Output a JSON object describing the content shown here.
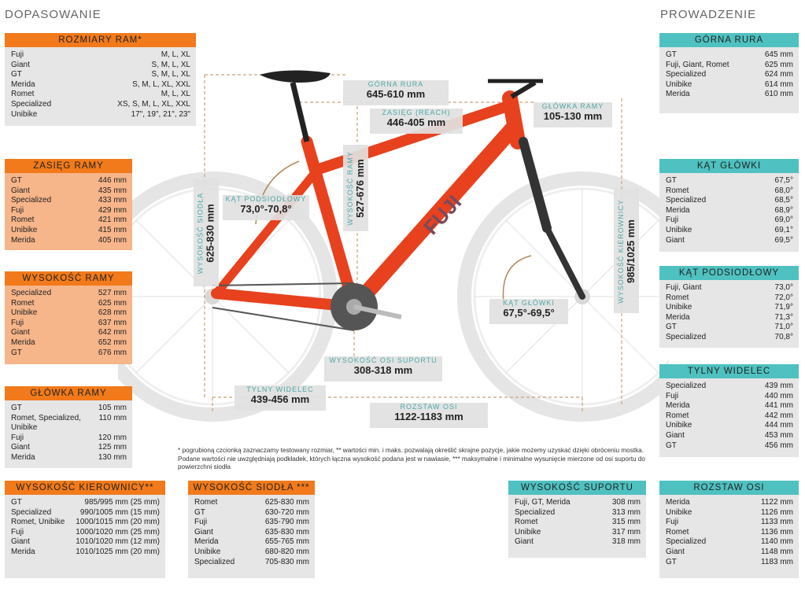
{
  "titles": {
    "left": "DOPASOWANIE",
    "right": "PROWADZENIE"
  },
  "tables": {
    "rozmiary": {
      "title": "ROZMIARY RAM*",
      "rows": [
        {
          "n": "Fuji",
          "v": "M, L, XL"
        },
        {
          "n": "Giant",
          "v": "S, M, L, XL"
        },
        {
          "n": "GT",
          "v": "S, M, L, XL"
        },
        {
          "n": "Merida",
          "v": "S, M, L, XL, XXL"
        },
        {
          "n": "Romet",
          "v": "M, L, XL"
        },
        {
          "n": "Specialized",
          "v": "XS, S, M, L, XL, XXL"
        },
        {
          "n": "Unibike",
          "v": "17\", 19\", 21\", 23\""
        }
      ]
    },
    "zasieg": {
      "title": "ZASIĘG RAMY",
      "rows": [
        {
          "n": "GT",
          "v": "446 mm"
        },
        {
          "n": "Giant",
          "v": "435 mm"
        },
        {
          "n": "Specialized",
          "v": "433 mm"
        },
        {
          "n": "Fuji",
          "v": "429 mm"
        },
        {
          "n": "Romet",
          "v": "421 mm"
        },
        {
          "n": "Unibike",
          "v": "415 mm"
        },
        {
          "n": "Merida",
          "v": "405 mm"
        }
      ]
    },
    "wysokosc_ramy": {
      "title": "WYSOKOŚĆ RAMY",
      "rows": [
        {
          "n": "Specialized",
          "v": "527 mm"
        },
        {
          "n": "Romet",
          "v": "625 mm"
        },
        {
          "n": "Unibike",
          "v": "628 mm"
        },
        {
          "n": "Fuji",
          "v": "637 mm"
        },
        {
          "n": "Giant",
          "v": "642 mm"
        },
        {
          "n": "Merida",
          "v": "652 mm"
        },
        {
          "n": "GT",
          "v": "676 mm"
        }
      ]
    },
    "glowka": {
      "title": "GŁÓWKA RAMY",
      "rows": [
        {
          "n": "GT",
          "v": "105 mm"
        },
        {
          "n": "Romet, Specialized, Unibike",
          "v": "110 mm"
        },
        {
          "n": "Fuji",
          "v": "120 mm"
        },
        {
          "n": "Giant",
          "v": "125 mm"
        },
        {
          "n": "Merida",
          "v": "130 mm"
        }
      ]
    },
    "kierownica": {
      "title": "WYSOKOŚĆ KIEROWNICY**",
      "rows": [
        {
          "n": "GT",
          "v": "985/995 mm (25 mm)"
        },
        {
          "n": "Specialized",
          "v": "990/1005 mm (15 mm)"
        },
        {
          "n": "Romet, Unibike",
          "v": "1000/1015 mm (20 mm)"
        },
        {
          "n": "Fuji",
          "v": "1000/1020 mm (25 mm)"
        },
        {
          "n": "Giant",
          "v": "1010/1020 mm (12 mm)"
        },
        {
          "n": "Merida",
          "v": "1010/1025 mm (20 mm)"
        }
      ]
    },
    "siodlo": {
      "title": "WYSOKOŚĆ SIODŁA ***",
      "rows": [
        {
          "n": "Romet",
          "v": "625-830 mm"
        },
        {
          "n": "GT",
          "v": "630-720 mm"
        },
        {
          "n": "Fuji",
          "v": "635-790 mm"
        },
        {
          "n": "Giant",
          "v": "635-830 mm"
        },
        {
          "n": "Merida",
          "v": "655-765 mm"
        },
        {
          "n": "Unibike",
          "v": "680-820 mm"
        },
        {
          "n": "Specialized",
          "v": "705-830 mm"
        }
      ]
    },
    "suport": {
      "title": "WYSOKOŚĆ SUPORTU",
      "rows": [
        {
          "n": "Fuji, GT, Merida",
          "v": "308 mm"
        },
        {
          "n": "Specialized",
          "v": "313 mm"
        },
        {
          "n": "Romet",
          "v": "315 mm"
        },
        {
          "n": "Unibike",
          "v": "317 mm"
        },
        {
          "n": "Giant",
          "v": "318 mm"
        }
      ]
    },
    "gorna": {
      "title": "GÓRNA RURA",
      "rows": [
        {
          "n": "GT",
          "v": "645 mm"
        },
        {
          "n": "Fuji, Giant, Romet",
          "v": "625 mm"
        },
        {
          "n": "Specialized",
          "v": "624 mm"
        },
        {
          "n": "Unibike",
          "v": "614 mm"
        },
        {
          "n": "Merida",
          "v": "610 mm"
        }
      ]
    },
    "kat_glowki": {
      "title": "KĄT GŁÓWKI",
      "rows": [
        {
          "n": "GT",
          "v": "67,5°"
        },
        {
          "n": "Romet",
          "v": "68,0°"
        },
        {
          "n": "Specialized",
          "v": "68,5°"
        },
        {
          "n": "Merida",
          "v": "68,9°"
        },
        {
          "n": "Fuji",
          "v": "69,0°"
        },
        {
          "n": "Unibike",
          "v": "69,1°"
        },
        {
          "n": "Giant",
          "v": "69,5°"
        }
      ]
    },
    "kat_podsiodlowy": {
      "title": "KĄT PODSIODŁOWY",
      "rows": [
        {
          "n": "Fuji, Giant",
          "v": "73,0°"
        },
        {
          "n": "Romet",
          "v": "72,0°"
        },
        {
          "n": "Unibike",
          "v": "71,9°"
        },
        {
          "n": "Merida",
          "v": "71,3°"
        },
        {
          "n": "GT",
          "v": "71,0°"
        },
        {
          "n": "Specialized",
          "v": "70,8°"
        }
      ]
    },
    "tylny": {
      "title": "TYLNY WIDELEC",
      "rows": [
        {
          "n": "Specialized",
          "v": "439 mm"
        },
        {
          "n": "Fuji",
          "v": "440 mm"
        },
        {
          "n": "Merida",
          "v": "441 mm"
        },
        {
          "n": "Romet",
          "v": "442 mm"
        },
        {
          "n": "Unibike",
          "v": "444 mm"
        },
        {
          "n": "Giant",
          "v": "453 mm"
        },
        {
          "n": "GT",
          "v": "456 mm"
        }
      ]
    },
    "rozstaw": {
      "title": "ROZSTAW OSI",
      "rows": [
        {
          "n": "Merida",
          "v": "1122 mm"
        },
        {
          "n": "Unibike",
          "v": "1126 mm"
        },
        {
          "n": "Fuji",
          "v": "1133 mm"
        },
        {
          "n": "Romet",
          "v": "1136 mm"
        },
        {
          "n": "Specialized",
          "v": "1140 mm"
        },
        {
          "n": "Giant",
          "v": "1148 mm"
        },
        {
          "n": "GT",
          "v": "1183 mm"
        }
      ]
    }
  },
  "diagram": {
    "gorna_rura": {
      "label": "GÓRNA RURA",
      "value": "645-610 mm"
    },
    "zasieg": {
      "label": "ZASIĘG (REACH)",
      "value": "446-405 mm"
    },
    "glowka": {
      "label": "GŁÓWKA RAMY",
      "value": "105-130 mm"
    },
    "kat_podsiodlowy": {
      "label": "KĄT PODSIODŁOWY",
      "value": "73,0°-70,8°"
    },
    "kat_glowki": {
      "label": "KĄT GŁÓWKI",
      "value": "67,5°-69,5°"
    },
    "suport": {
      "label": "WYSOKOŚĆ OSI SUPORTU",
      "value": "308-318 mm"
    },
    "tylny": {
      "label": "TYLNY WIDELEC",
      "value": "439-456 mm"
    },
    "rozstaw": {
      "label": "ROZSTAW OSI",
      "value": "1122-1183 mm"
    },
    "siodlo": {
      "label": "WYSOKOŚĆ SIODŁA",
      "value": "625-830 mm"
    },
    "rama": {
      "label": "WYSOKOŚĆ RAMY",
      "value": "527-676 mm"
    },
    "kierownica": {
      "label": "WYSOKOŚĆ KIEROWNICY",
      "value": "985/1025 mm"
    },
    "brand": "FUJI"
  },
  "footnote": "* pogrubioną czcionką zaznaczamy testowany rozmiar, ** wartości min. i maks. pozwalają określić skrajne pozycje, jakie możemy uzyskać dzięki obróceniu mostka. Podane wartości nie uwzględniają podkładek, których łączna wysokość podana jest w nawiasie, *** maksymalne i minimalne wysunięcie mierzone od osi suportu do powierzchni siodła",
  "colors": {
    "orange": "#f27a1a",
    "teal": "#4fc1c1",
    "frame": "#e8411e",
    "panel": "#e6e6e6"
  }
}
